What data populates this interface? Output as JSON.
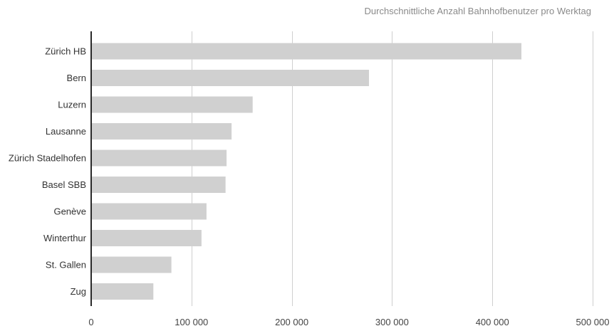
{
  "chart_data": {
    "type": "bar",
    "orientation": "horizontal",
    "title": "",
    "subtitle": "Durchschnittliche Anzahl Bahnhofbenutzer pro Werktag",
    "xlabel": "",
    "ylabel": "",
    "categories": [
      "Zürich HB",
      "Bern",
      "Luzern",
      "Lausanne",
      "Zürich Stadelhofen",
      "Basel SBB",
      "Genève",
      "Winterthur",
      "St. Gallen",
      "Zug"
    ],
    "values": [
      429000,
      277000,
      161000,
      140000,
      135000,
      134000,
      115000,
      110000,
      80000,
      62000
    ],
    "xlim": [
      0,
      500000
    ],
    "xticks": [
      0,
      100000,
      200000,
      300000,
      400000,
      500000
    ],
    "xtick_labels": [
      "0",
      "100 000",
      "200 000",
      "300 000",
      "400 000",
      "500 000"
    ],
    "grid": true,
    "legend": "none",
    "bar_color": "#d0d0d0"
  }
}
